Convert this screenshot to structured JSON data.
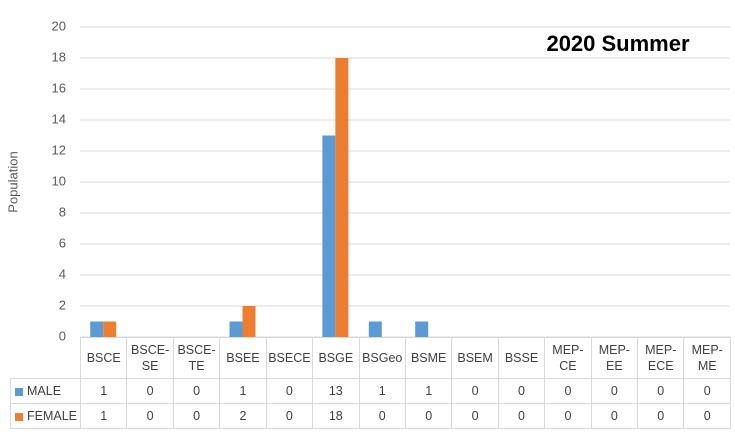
{
  "chart_data": {
    "type": "bar",
    "title": "2020 Summer",
    "y_label": "Population",
    "categories": [
      "BSCE",
      "BSCE-SE",
      "BSCE-TE",
      "BSEE",
      "BSECE",
      "BSGE",
      "BSGeo",
      "BSME",
      "BSEM",
      "BSSE",
      "MEP-CE",
      "MEP-EE",
      "MEP-ECE",
      "MEP-ME"
    ],
    "series": [
      {
        "name": "MALE",
        "color": "#5b9bd5",
        "values": [
          1,
          0,
          0,
          1,
          0,
          13,
          1,
          1,
          0,
          0,
          0,
          0,
          0,
          0
        ]
      },
      {
        "name": "FEMALE",
        "color": "#ed7d31",
        "values": [
          1,
          0,
          0,
          2,
          0,
          18,
          0,
          0,
          0,
          0,
          0,
          0,
          0,
          0
        ]
      }
    ],
    "ylim": [
      0,
      20
    ],
    "yticks": [
      0,
      2,
      4,
      6,
      8,
      10,
      12,
      14,
      16,
      18,
      20
    ],
    "grid": true
  }
}
